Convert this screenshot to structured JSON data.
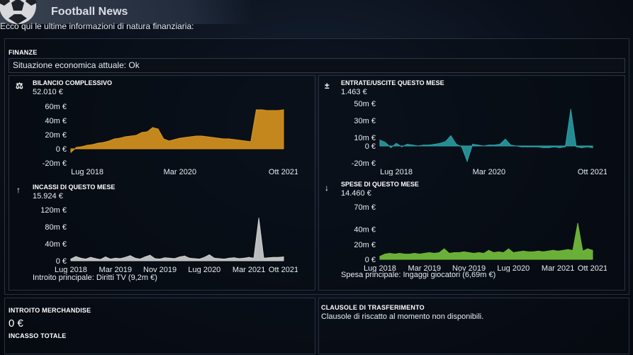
{
  "app": {
    "title": "Football News"
  },
  "intro": "Ecco qui le ultime informazioni di natura finanziaria:",
  "finances": {
    "label": "FINANZE",
    "status": "Situazione economica attuale: Ok",
    "balance": {
      "title": "BILANCIO COMPLESSIVO",
      "value": "52.010 €",
      "icon": "scale-icon",
      "color": "#d9951e",
      "chart_data": {
        "type": "area",
        "y_ticks": [
          "60m €",
          "40m €",
          "20m €",
          "0 €",
          "-20m €"
        ],
        "y_tick_values": [
          60,
          40,
          20,
          0,
          -20
        ],
        "ylim": [
          -20,
          60
        ],
        "x_ticks": [
          "Lug 2018",
          "Mar 2020",
          "Ott 2021"
        ],
        "x_tick_index": [
          3,
          20,
          39
        ],
        "values": [
          -5,
          2,
          3,
          5,
          6,
          8,
          9,
          11,
          14,
          15,
          17,
          18,
          19,
          23,
          24,
          30,
          28,
          14,
          11,
          13,
          15,
          16,
          17,
          18,
          18,
          17,
          16,
          15,
          14,
          14,
          13,
          12,
          11,
          10,
          55,
          55,
          54,
          54,
          54,
          55
        ]
      }
    },
    "cashflow": {
      "title": "ENTRATE/USCITE QUESTO MESE",
      "value": "1.463 €",
      "icon": "plus-minus-icon",
      "color": "#2aa3a8",
      "chart_data": {
        "type": "area",
        "y_ticks": [
          "50m €",
          "30m €",
          "10m €",
          "0 €",
          "-20m €"
        ],
        "y_tick_values": [
          50,
          30,
          10,
          0,
          -20
        ],
        "ylim": [
          -20,
          50
        ],
        "x_ticks": [
          "Lug 2018",
          "Mar 2020",
          "Ott 2021"
        ],
        "x_tick_index": [
          3,
          20,
          39
        ],
        "values": [
          7,
          4,
          -2,
          3,
          -1,
          2,
          1,
          0,
          1,
          1,
          2,
          3,
          5,
          12,
          2,
          -1,
          -18,
          2,
          1,
          0,
          1,
          1,
          2,
          8,
          1,
          0,
          -1,
          -1,
          -1,
          -1,
          -2,
          -2,
          -1,
          -2,
          -1,
          43,
          -1,
          -2,
          -1,
          -2
        ]
      }
    },
    "income": {
      "title": "INCASSI DI QUESTO MESE",
      "value": "15.924 €",
      "icon": "arrow-up-icon",
      "color": "#cfcfcf",
      "chart_data": {
        "type": "area",
        "y_ticks": [
          "120m €",
          "80m €",
          "40m €",
          "0 €"
        ],
        "y_tick_values": [
          120,
          80,
          40,
          0
        ],
        "ylim": [
          0,
          120
        ],
        "x_ticks": [
          "Lug 2018",
          "Mar 2019",
          "Nov 2019",
          "Lug 2020",
          "Mar 2021",
          "Ott 2021"
        ],
        "x_tick_index": [
          0,
          9,
          18,
          27,
          36,
          43
        ],
        "values": [
          4,
          10,
          6,
          4,
          8,
          5,
          3,
          9,
          4,
          6,
          5,
          8,
          12,
          6,
          4,
          9,
          13,
          5,
          4,
          7,
          6,
          5,
          9,
          11,
          6,
          5,
          4,
          8,
          14,
          6,
          5,
          4,
          6,
          7,
          5,
          6,
          8,
          6,
          100,
          6,
          7,
          8,
          8,
          9
        ]
      },
      "caption": "Introito principale: Diritti TV (9,2m €)"
    },
    "expenses": {
      "title": "SPESE DI QUESTO MESE",
      "value": "14.460 €",
      "icon": "arrow-down-icon",
      "color": "#6fb83a",
      "chart_data": {
        "type": "area",
        "y_ticks": [
          "70m €",
          "40m €",
          "20m €",
          "0 €"
        ],
        "y_tick_values": [
          70,
          40,
          20,
          0
        ],
        "ylim": [
          0,
          70
        ],
        "x_ticks": [
          "Lug 2018",
          "Mar 2019",
          "Nov 2019",
          "Lug 2020",
          "Mar 2021",
          "Ott 2021"
        ],
        "x_tick_index": [
          0,
          9,
          18,
          27,
          36,
          43
        ],
        "values": [
          4,
          7,
          8,
          7,
          8,
          7,
          7,
          8,
          7,
          8,
          9,
          8,
          9,
          14,
          8,
          9,
          9,
          10,
          9,
          8,
          9,
          8,
          12,
          9,
          10,
          9,
          14,
          9,
          10,
          11,
          10,
          10,
          11,
          10,
          11,
          12,
          11,
          12,
          13,
          12,
          48,
          11,
          14,
          12
        ]
      },
      "caption": "Spesa principale: Ingaggi giocatori (6,69m €)"
    }
  },
  "merchandise": {
    "title": "INTROITO MERCHANDISE",
    "value": "0 €",
    "total_label": "INCASSO TOTALE"
  },
  "transfer_clauses": {
    "title": "CLAUSOLE DI TRASFERIMENTO",
    "text": "Clausole di riscatto al momento non disponibili."
  }
}
